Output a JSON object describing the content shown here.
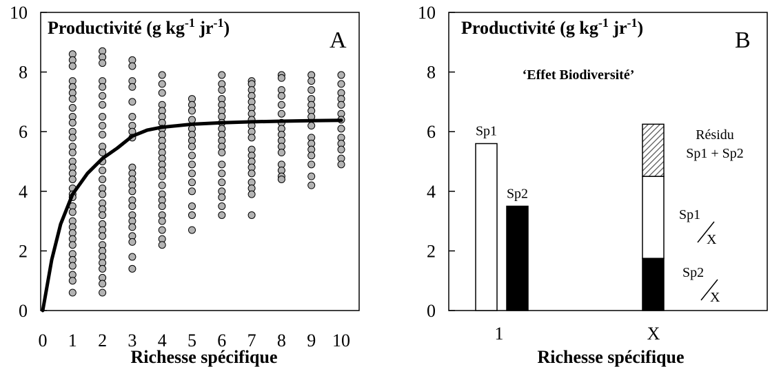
{
  "chart_data": [
    {
      "panel_letter": "A",
      "type": "scatter",
      "title": "Productivité (g kg",
      "title_sup1": "-1",
      "title_mid": " jr",
      "title_sup2": "-1",
      "title_end": ")",
      "xlabel": "Richesse spécifique",
      "xlim": [
        0,
        10
      ],
      "ylim": [
        0,
        10
      ],
      "x_ticks": [
        "0",
        "1",
        "2",
        "3",
        "4",
        "5",
        "6",
        "7",
        "8",
        "9",
        "10"
      ],
      "y_ticks": [
        "0",
        "2",
        "4",
        "6",
        "8",
        "10"
      ],
      "points": [
        {
          "x": 1,
          "y": [
            8.6,
            8.4,
            8.2,
            7.7,
            7.5,
            7.3,
            7.1,
            6.8,
            6.5,
            6.3,
            6.0,
            5.8,
            5.5,
            5.3,
            5.0,
            4.8,
            4.6,
            4.4,
            4.1,
            3.9,
            3.8,
            3.5,
            3.3,
            3.0,
            2.8,
            2.6,
            2.4,
            2.2,
            1.9,
            1.7,
            1.5,
            1.2,
            1.0,
            0.6
          ]
        },
        {
          "x": 2,
          "y": [
            8.7,
            8.5,
            8.3,
            7.7,
            7.5,
            7.2,
            6.9,
            6.5,
            6.2,
            5.9,
            5.5,
            5.3,
            5.0,
            4.7,
            4.4,
            4.1,
            3.9,
            3.6,
            3.4,
            3.2,
            2.9,
            2.7,
            2.5,
            2.2,
            2.0,
            1.8,
            1.6,
            1.4,
            1.1,
            0.9,
            0.6
          ]
        },
        {
          "x": 3,
          "y": [
            8.4,
            8.2,
            7.7,
            7.5,
            7.0,
            6.5,
            6.2,
            6.0,
            5.8,
            4.8,
            4.6,
            4.4,
            4.2,
            4.0,
            3.7,
            3.5,
            3.2,
            3.0,
            2.8,
            2.5,
            2.3,
            1.8,
            1.4
          ]
        },
        {
          "x": 4,
          "y": [
            7.9,
            7.6,
            7.3,
            6.9,
            6.7,
            6.5,
            6.3,
            6.1,
            5.9,
            5.7,
            5.5,
            5.3,
            5.1,
            4.9,
            4.7,
            4.5,
            4.2,
            3.9,
            3.7,
            3.5,
            3.2,
            3.0,
            2.7,
            2.4,
            2.2
          ]
        },
        {
          "x": 5,
          "y": [
            7.1,
            6.9,
            6.7,
            6.4,
            6.1,
            5.9,
            5.7,
            5.5,
            5.2,
            4.9,
            4.6,
            4.3,
            4.0,
            3.5,
            3.2,
            2.7
          ]
        },
        {
          "x": 6,
          "y": [
            7.9,
            7.6,
            7.4,
            7.1,
            6.9,
            6.7,
            6.5,
            6.3,
            6.1,
            5.9,
            5.7,
            5.5,
            5.3,
            4.9,
            4.6,
            4.3,
            4.0,
            3.8,
            3.5,
            3.2
          ]
        },
        {
          "x": 7,
          "y": [
            7.7,
            7.6,
            7.4,
            7.2,
            7.0,
            6.8,
            6.6,
            6.4,
            6.2,
            6.0,
            5.8,
            5.4,
            5.2,
            5.0,
            4.8,
            4.6,
            4.3,
            4.1,
            3.9,
            3.2
          ]
        },
        {
          "x": 8,
          "y": [
            7.9,
            7.8,
            7.4,
            7.2,
            6.9,
            6.6,
            6.3,
            6.1,
            5.9,
            5.7,
            5.5,
            5.3,
            4.9,
            4.7,
            4.5,
            4.4
          ]
        },
        {
          "x": 9,
          "y": [
            7.9,
            7.7,
            7.4,
            7.1,
            6.9,
            6.7,
            6.5,
            6.2,
            5.8,
            5.6,
            5.4,
            5.2,
            4.9,
            4.5,
            4.2
          ]
        },
        {
          "x": 10,
          "y": [
            7.9,
            7.6,
            7.3,
            7.1,
            6.9,
            6.6,
            6.4,
            6.1,
            5.8,
            5.6,
            5.4,
            5.1,
            4.9
          ]
        }
      ],
      "fit_line": {
        "x": [
          0,
          0.3,
          0.6,
          1,
          1.5,
          2,
          2.5,
          3,
          3.5,
          4,
          5,
          6,
          7,
          8,
          9,
          10
        ],
        "y": [
          0,
          1.7,
          2.9,
          3.9,
          4.6,
          5.1,
          5.45,
          5.85,
          6.05,
          6.15,
          6.25,
          6.3,
          6.33,
          6.35,
          6.37,
          6.38
        ]
      }
    },
    {
      "panel_letter": "B",
      "type": "bar",
      "title": "Productivité (g kg",
      "title_sup1": "-1",
      "title_mid": " jr",
      "title_sup2": "-1",
      "title_end": ")",
      "subtitle": "‘Effet Biodiversité’",
      "xlabel": "Richesse spécifique",
      "ylim": [
        0,
        10
      ],
      "y_ticks": [
        "0",
        "2",
        "4",
        "6",
        "8",
        "10"
      ],
      "categories": [
        "1",
        "X"
      ],
      "monoculture_bars": [
        {
          "label": "Sp1",
          "value": 5.6,
          "fill": "#ffffff"
        },
        {
          "label": "Sp2",
          "value": 3.5,
          "fill": "#000000"
        }
      ],
      "mixture_stack": [
        {
          "label": "Sp2",
          "denominator": "X",
          "value": 1.75,
          "fill": "#000000"
        },
        {
          "label": "Sp1",
          "denominator": "X",
          "value": 2.75,
          "fill": "#ffffff"
        },
        {
          "label_line1": "Résidu",
          "label_line2": "Sp1 + Sp2",
          "value": 1.75,
          "fill": "hatched"
        }
      ]
    }
  ]
}
